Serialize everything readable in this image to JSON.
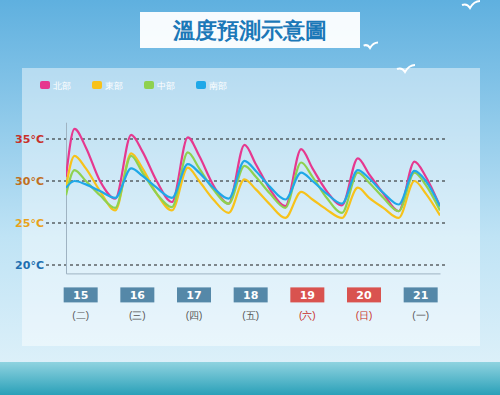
{
  "chart_data": {
    "type": "line",
    "title": "溫度預測示意圖",
    "x": [
      14.75,
      14.9,
      15.1,
      15.35,
      15.62,
      15.9,
      16.1,
      16.35,
      16.62,
      16.9,
      17.1,
      17.35,
      17.62,
      17.9,
      18.1,
      18.35,
      18.62,
      18.9,
      19.1,
      19.35,
      19.62,
      19.9,
      20.1,
      20.35,
      20.62,
      20.9,
      21.1,
      21.35
    ],
    "series": [
      {
        "name": "北部",
        "color": "#e6388f",
        "values": [
          30.5,
          36.2,
          34.0,
          30.0,
          27.9,
          35.5,
          33.5,
          30.0,
          27.5,
          35.2,
          33.0,
          29.5,
          27.3,
          34.3,
          32.0,
          29.0,
          27.0,
          33.8,
          31.5,
          28.8,
          27.1,
          32.7,
          30.8,
          28.5,
          26.4,
          32.3,
          30.5,
          27.0
        ]
      },
      {
        "name": "東部",
        "color": "#f7c21a",
        "values": [
          29.3,
          33.0,
          31.5,
          28.8,
          26.5,
          33.3,
          31.5,
          28.5,
          26.5,
          31.6,
          30.0,
          27.8,
          26.2,
          30.2,
          29.0,
          27.2,
          25.6,
          28.7,
          27.8,
          26.6,
          25.6,
          29.2,
          28.0,
          26.8,
          25.6,
          30.0,
          28.5,
          25.9
        ]
      },
      {
        "name": "中部",
        "color": "#8fd14f",
        "values": [
          28.3,
          31.3,
          30.0,
          28.3,
          26.8,
          33.0,
          31.0,
          28.5,
          26.9,
          33.4,
          31.5,
          29.0,
          27.3,
          31.8,
          30.5,
          28.5,
          26.8,
          32.2,
          30.5,
          28.0,
          26.2,
          31.0,
          29.8,
          28.0,
          26.4,
          31.0,
          29.5,
          26.5
        ]
      },
      {
        "name": "南部",
        "color": "#1fa8e8",
        "values": [
          29.2,
          30.0,
          29.6,
          28.8,
          28.0,
          31.5,
          30.6,
          29.2,
          28.0,
          32.0,
          31.0,
          29.2,
          27.9,
          32.4,
          31.2,
          29.3,
          27.8,
          31.0,
          30.0,
          28.5,
          27.3,
          31.3,
          30.3,
          28.6,
          27.2,
          31.2,
          30.0,
          27.0
        ]
      }
    ],
    "xlim": [
      14.75,
      21.35
    ],
    "xticks": [
      {
        "value": 15,
        "label": "15"
      },
      {
        "value": 16,
        "label": "16"
      },
      {
        "value": 17,
        "label": "17"
      },
      {
        "value": 18,
        "label": "18"
      },
      {
        "value": 19,
        "label": "19"
      },
      {
        "value": 20,
        "label": "20"
      },
      {
        "value": 21,
        "label": "21"
      }
    ],
    "xtick_sublabels": [
      "(二)",
      "(三)",
      "(四)",
      "(五)",
      "(六)",
      "(日)",
      "(一)"
    ],
    "ylim": [
      19,
      37
    ],
    "yticks": [
      {
        "value": 20,
        "label": "20°C"
      },
      {
        "value": 25,
        "label": "25°C"
      },
      {
        "value": 30,
        "label": "30°C"
      },
      {
        "value": 35,
        "label": "35°C"
      }
    ],
    "grid": true,
    "legend": "top-left"
  }
}
